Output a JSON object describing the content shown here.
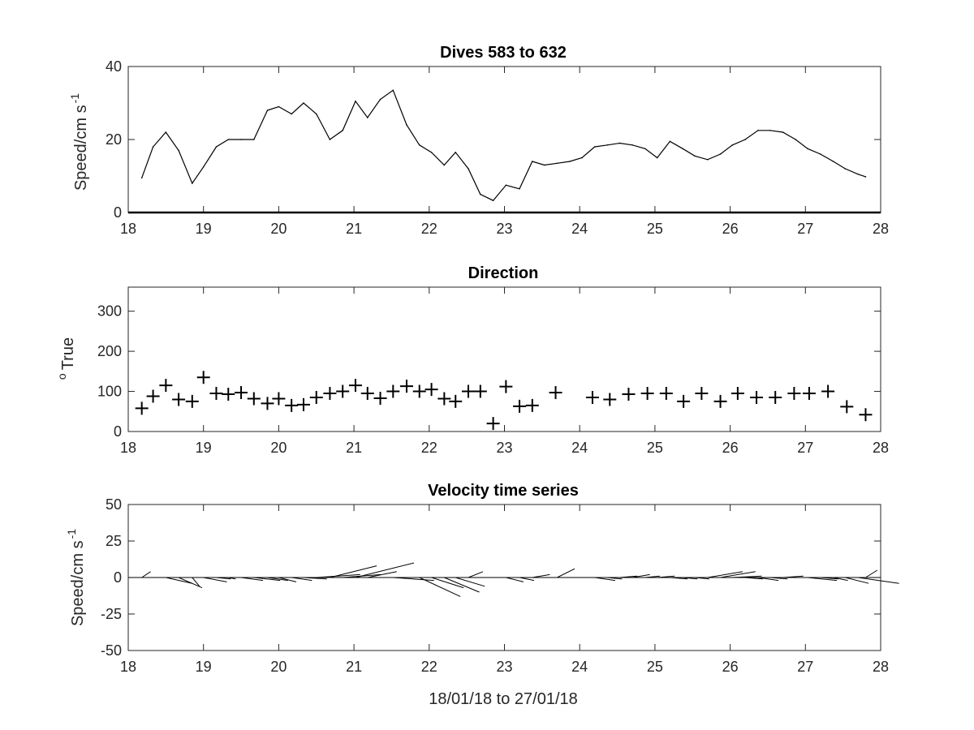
{
  "chart_data": [
    {
      "type": "line",
      "title": "Dives 583 to 632",
      "ylabel": "Speed/cm s",
      "ylabel_superscript": "-1",
      "xlim": [
        18,
        28
      ],
      "ylim": [
        0,
        40
      ],
      "xticks": [
        "18",
        "19",
        "20",
        "21",
        "22",
        "23",
        "24",
        "25",
        "26",
        "27",
        "28"
      ],
      "yticks": [
        "0",
        "20",
        "40"
      ],
      "color": "#000000",
      "x": [
        18.18,
        18.33,
        18.5,
        18.67,
        18.85,
        19.0,
        19.17,
        19.33,
        19.5,
        19.67,
        19.85,
        20.0,
        20.17,
        20.33,
        20.5,
        20.68,
        20.85,
        21.02,
        21.18,
        21.35,
        21.52,
        21.7,
        21.87,
        22.03,
        22.2,
        22.35,
        22.52,
        22.68,
        22.85,
        23.02,
        23.2,
        23.37,
        23.53,
        23.7,
        23.87,
        24.03,
        24.2,
        24.37,
        24.53,
        24.7,
        24.87,
        25.03,
        25.2,
        25.37,
        25.53,
        25.7,
        25.87,
        26.03,
        26.2,
        26.37,
        26.53,
        26.7,
        26.87,
        27.03,
        27.2,
        27.37,
        27.53,
        27.7,
        27.8
      ],
      "y": [
        9.5,
        18,
        22,
        17,
        8,
        12.5,
        18,
        20,
        20,
        20,
        28,
        29,
        27,
        30,
        27,
        20,
        22.5,
        30.5,
        26,
        31,
        33.5,
        24,
        18.5,
        16.5,
        13,
        16.5,
        12,
        5,
        3.3,
        7.5,
        6.5,
        14,
        13,
        13.5,
        14,
        15,
        18,
        18.5,
        19,
        18.5,
        17.5,
        15,
        19.5,
        17.5,
        15.5,
        14.5,
        16,
        18.5,
        20,
        22.5,
        22.5,
        22,
        20,
        17.5,
        16,
        14,
        12,
        10.5,
        9.8
      ]
    },
    {
      "type": "scatter",
      "title": "Direction",
      "ylabel": "True",
      "ylabel_prefix": "o",
      "xlim": [
        18,
        28
      ],
      "ylim": [
        0,
        360
      ],
      "xticks": [
        "18",
        "19",
        "20",
        "21",
        "22",
        "23",
        "24",
        "25",
        "26",
        "27",
        "28"
      ],
      "yticks": [
        "0",
        "100",
        "200",
        "300"
      ],
      "marker": "plus",
      "color": "#000000",
      "x": [
        18.18,
        18.33,
        18.5,
        18.67,
        18.85,
        19.0,
        19.17,
        19.33,
        19.5,
        19.67,
        19.85,
        20.0,
        20.17,
        20.33,
        20.5,
        20.68,
        20.85,
        21.02,
        21.18,
        21.35,
        21.52,
        21.7,
        21.87,
        22.03,
        22.2,
        22.35,
        22.52,
        22.68,
        22.85,
        23.02,
        23.2,
        23.37,
        23.68,
        24.17,
        24.4,
        24.65,
        24.9,
        25.15,
        25.38,
        25.62,
        25.87,
        26.1,
        26.35,
        26.6,
        26.85,
        27.05,
        27.3,
        27.55,
        27.8
      ],
      "y": [
        58,
        88,
        115,
        80,
        75,
        135,
        95,
        93,
        97,
        82,
        70,
        82,
        65,
        67,
        85,
        95,
        100,
        115,
        95,
        83,
        100,
        113,
        100,
        105,
        82,
        75,
        100,
        100,
        20,
        112,
        63,
        65,
        97,
        85,
        80,
        93,
        95,
        95,
        75,
        95,
        75,
        95,
        85,
        85,
        95,
        95,
        100,
        62,
        42
      ]
    },
    {
      "type": "line",
      "subtype": "vector-stick",
      "title": "Velocity time series",
      "ylabel": "Speed/cm s",
      "ylabel_superscript": "-1",
      "xlabel": "18/01/18 to 27/01/18",
      "xlim": [
        18,
        28
      ],
      "ylim": [
        -50,
        50
      ],
      "xticks": [
        "18",
        "19",
        "20",
        "21",
        "22",
        "23",
        "24",
        "25",
        "26",
        "27",
        "28"
      ],
      "yticks": [
        "-50",
        "-25",
        "0",
        "25",
        "50"
      ],
      "color": "#000000",
      "baseline": 0,
      "x": [
        18.18,
        18.33,
        18.5,
        18.67,
        18.85,
        19.0,
        19.17,
        19.33,
        19.5,
        19.67,
        19.85,
        20.0,
        20.17,
        20.33,
        20.5,
        20.68,
        20.85,
        21.02,
        21.18,
        21.35,
        21.52,
        21.7,
        21.87,
        22.03,
        22.2,
        22.35,
        22.52,
        23.02,
        23.2,
        23.37,
        23.7,
        24.2,
        24.37,
        24.53,
        24.7,
        24.87,
        25.03,
        25.2,
        25.37,
        25.53,
        25.7,
        25.87,
        26.03,
        26.2,
        26.37,
        26.53,
        26.7,
        26.87,
        27.03,
        27.2,
        27.37,
        27.53,
        27.7,
        27.8
      ],
      "u": [
        6,
        4,
        18,
        16,
        5,
        16,
        10,
        5,
        15,
        18,
        14,
        12,
        14,
        16,
        30,
        32,
        26,
        40,
        20,
        10,
        28,
        38,
        28,
        22,
        24,
        20,
        10,
        12,
        10,
        12,
        12,
        14,
        10,
        12,
        12,
        10,
        12,
        12,
        10,
        10,
        24,
        24,
        20,
        12,
        14,
        12,
        14,
        16,
        20,
        12,
        10,
        16,
        28,
        8
      ],
      "v": [
        4,
        0,
        -4,
        -7,
        -6,
        -3,
        -1,
        -1,
        -2,
        -2,
        -2,
        -3,
        -2,
        -1,
        2,
        8,
        2,
        10,
        4,
        0,
        -2,
        0,
        -13,
        -7,
        -10,
        -6,
        4,
        -3,
        -2,
        2,
        6,
        -2,
        -1,
        1,
        2,
        1,
        1,
        -1,
        -1,
        -1,
        4,
        4,
        1,
        -1,
        -2,
        -1,
        1,
        0,
        -2,
        -1,
        -2,
        -4,
        -4,
        5
      ]
    }
  ]
}
